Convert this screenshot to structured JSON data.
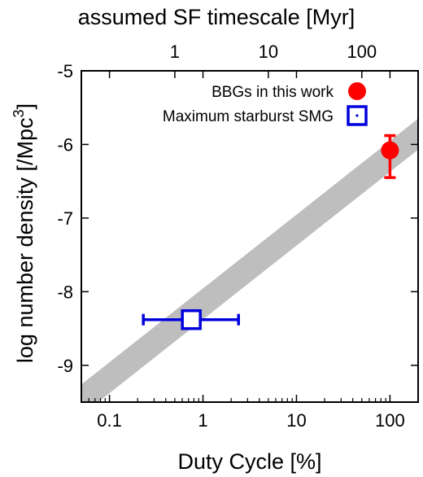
{
  "chart_data": {
    "type": "scatter",
    "title": "",
    "xlabel": "Duty Cycle [%]",
    "ylabel": "log number density [/Mpc",
    "ylabel_sup": "3",
    "ylabel_end": "]",
    "x2label": "assumed SF timescale [Myr]",
    "x_scale": "log",
    "xlim": [
      0.05,
      200
    ],
    "ylim": [
      -9.5,
      -5
    ],
    "x_ticks": [
      0.1,
      1,
      10,
      100
    ],
    "x_tick_labels": [
      "0.1",
      "1",
      "10",
      "100"
    ],
    "y_ticks": [
      -9,
      -8,
      -7,
      -6,
      -5
    ],
    "y_tick_labels": [
      "-9",
      "-8",
      "-7",
      "-6",
      "-5"
    ],
    "x2_ticks_dutycycle": [
      0.5,
      5,
      50
    ],
    "x2_tick_labels": [
      "1",
      "10",
      "100"
    ],
    "grid": false,
    "legend_position": "top-right",
    "band": {
      "color": "#bebebe",
      "lower_line": {
        "x": [
          0.05,
          200
        ],
        "y": [
          -9.68,
          -6.07
        ]
      },
      "upper_line": {
        "x": [
          0.05,
          200
        ],
        "y": [
          -9.26,
          -5.65
        ]
      }
    },
    "series": [
      {
        "name": "BBGs in this work",
        "marker": "filled-circle",
        "color": "#ff0000",
        "points": [
          {
            "x": 100,
            "y": -6.08,
            "y_err_low": -6.45,
            "y_err_high": -5.88
          }
        ]
      },
      {
        "name": "Maximum starburst SMG",
        "marker": "open-square",
        "color": "#0000dd",
        "points": [
          {
            "x": 0.75,
            "y": -8.38,
            "x_err_low": 0.23,
            "x_err_high": 2.4
          }
        ]
      }
    ]
  }
}
